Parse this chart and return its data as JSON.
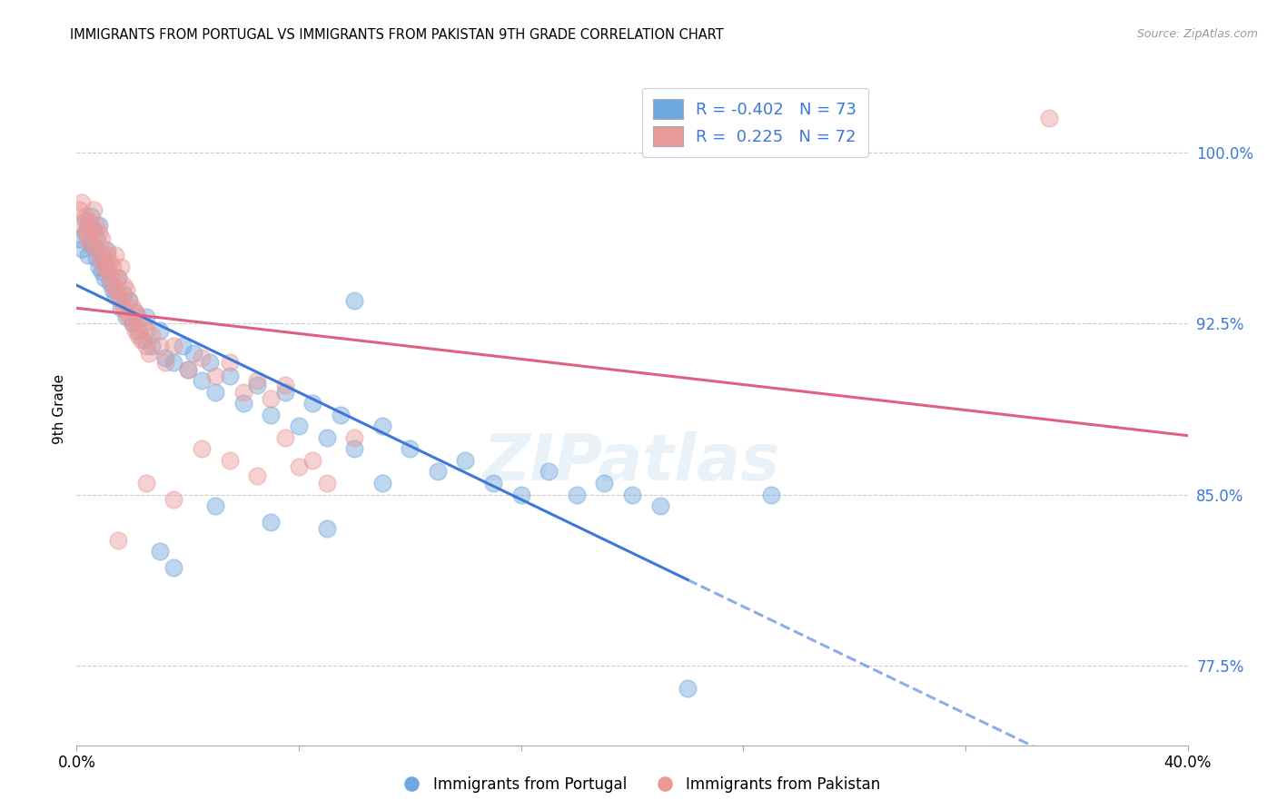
{
  "title": "IMMIGRANTS FROM PORTUGAL VS IMMIGRANTS FROM PAKISTAN 9TH GRADE CORRELATION CHART",
  "source": "Source: ZipAtlas.com",
  "ylabel": "9th Grade",
  "yticks": [
    77.5,
    85.0,
    92.5,
    100.0
  ],
  "ytick_labels": [
    "77.5%",
    "85.0%",
    "92.5%",
    "100.0%"
  ],
  "xlim": [
    0.0,
    40.0
  ],
  "ylim": [
    74.0,
    103.5
  ],
  "xticks": [
    0,
    8,
    16,
    24,
    32,
    40
  ],
  "xtick_labels": [
    "0.0%",
    "",
    "",
    "",
    "",
    "40.0%"
  ],
  "watermark": "ZIPatlas",
  "legend_blue_label": "Immigrants from Portugal",
  "legend_pink_label": "Immigrants from Pakistan",
  "R_blue": -0.402,
  "N_blue": 73,
  "R_pink": 0.225,
  "N_pink": 72,
  "blue_color": "#6fa8dc",
  "pink_color": "#ea9999",
  "blue_line_color": "#3c78d8",
  "pink_line_color": "#e06080",
  "blue_scatter": [
    [
      0.1,
      96.2
    ],
    [
      0.2,
      95.8
    ],
    [
      0.3,
      97.0
    ],
    [
      0.3,
      96.5
    ],
    [
      0.4,
      96.8
    ],
    [
      0.4,
      95.5
    ],
    [
      0.5,
      97.2
    ],
    [
      0.5,
      96.0
    ],
    [
      0.6,
      95.9
    ],
    [
      0.6,
      96.6
    ],
    [
      0.7,
      95.4
    ],
    [
      0.7,
      96.2
    ],
    [
      0.8,
      95.0
    ],
    [
      0.8,
      96.8
    ],
    [
      0.9,
      94.8
    ],
    [
      0.9,
      95.5
    ],
    [
      1.0,
      95.2
    ],
    [
      1.0,
      94.5
    ],
    [
      1.1,
      94.9
    ],
    [
      1.1,
      95.7
    ],
    [
      1.2,
      94.3
    ],
    [
      1.3,
      94.0
    ],
    [
      1.4,
      93.7
    ],
    [
      1.5,
      94.5
    ],
    [
      1.6,
      93.2
    ],
    [
      1.7,
      93.8
    ],
    [
      1.8,
      92.8
    ],
    [
      1.9,
      93.5
    ],
    [
      2.0,
      92.5
    ],
    [
      2.1,
      93.0
    ],
    [
      2.2,
      92.2
    ],
    [
      2.4,
      91.8
    ],
    [
      2.5,
      92.8
    ],
    [
      2.7,
      91.5
    ],
    [
      3.0,
      92.2
    ],
    [
      3.2,
      91.0
    ],
    [
      3.5,
      90.8
    ],
    [
      3.8,
      91.5
    ],
    [
      4.0,
      90.5
    ],
    [
      4.2,
      91.2
    ],
    [
      4.5,
      90.0
    ],
    [
      4.8,
      90.8
    ],
    [
      5.0,
      89.5
    ],
    [
      5.5,
      90.2
    ],
    [
      6.0,
      89.0
    ],
    [
      6.5,
      89.8
    ],
    [
      7.0,
      88.5
    ],
    [
      7.5,
      89.5
    ],
    [
      8.0,
      88.0
    ],
    [
      8.5,
      89.0
    ],
    [
      9.0,
      87.5
    ],
    [
      9.5,
      88.5
    ],
    [
      10.0,
      93.5
    ],
    [
      10.0,
      87.0
    ],
    [
      11.0,
      88.0
    ],
    [
      12.0,
      87.0
    ],
    [
      13.0,
      86.0
    ],
    [
      14.0,
      86.5
    ],
    [
      15.0,
      85.5
    ],
    [
      16.0,
      85.0
    ],
    [
      17.0,
      86.0
    ],
    [
      18.0,
      85.0
    ],
    [
      19.0,
      85.5
    ],
    [
      20.0,
      85.0
    ],
    [
      21.0,
      84.5
    ],
    [
      3.0,
      82.5
    ],
    [
      3.5,
      81.8
    ],
    [
      5.0,
      84.5
    ],
    [
      7.0,
      83.8
    ],
    [
      9.0,
      83.5
    ],
    [
      11.0,
      85.5
    ],
    [
      22.0,
      76.5
    ],
    [
      25.0,
      85.0
    ]
  ],
  "pink_scatter": [
    [
      0.1,
      97.5
    ],
    [
      0.2,
      96.8
    ],
    [
      0.2,
      97.8
    ],
    [
      0.3,
      96.5
    ],
    [
      0.3,
      97.2
    ],
    [
      0.4,
      97.0
    ],
    [
      0.4,
      96.2
    ],
    [
      0.5,
      96.8
    ],
    [
      0.5,
      96.0
    ],
    [
      0.6,
      96.5
    ],
    [
      0.6,
      97.5
    ],
    [
      0.7,
      95.8
    ],
    [
      0.7,
      96.8
    ],
    [
      0.8,
      95.5
    ],
    [
      0.8,
      96.5
    ],
    [
      0.9,
      95.2
    ],
    [
      0.9,
      96.2
    ],
    [
      1.0,
      95.0
    ],
    [
      1.0,
      95.8
    ],
    [
      1.1,
      94.8
    ],
    [
      1.1,
      95.5
    ],
    [
      1.2,
      94.5
    ],
    [
      1.2,
      95.2
    ],
    [
      1.3,
      94.2
    ],
    [
      1.3,
      95.0
    ],
    [
      1.4,
      94.0
    ],
    [
      1.4,
      95.5
    ],
    [
      1.5,
      93.8
    ],
    [
      1.5,
      94.5
    ],
    [
      1.6,
      93.5
    ],
    [
      1.6,
      95.0
    ],
    [
      1.7,
      93.2
    ],
    [
      1.7,
      94.2
    ],
    [
      1.8,
      93.0
    ],
    [
      1.8,
      94.0
    ],
    [
      1.9,
      92.8
    ],
    [
      1.9,
      93.5
    ],
    [
      2.0,
      92.5
    ],
    [
      2.0,
      93.2
    ],
    [
      2.1,
      92.2
    ],
    [
      2.1,
      93.0
    ],
    [
      2.2,
      92.0
    ],
    [
      2.2,
      92.8
    ],
    [
      2.3,
      91.8
    ],
    [
      2.4,
      92.5
    ],
    [
      2.5,
      91.5
    ],
    [
      2.5,
      92.2
    ],
    [
      2.6,
      91.2
    ],
    [
      2.7,
      92.0
    ],
    [
      3.0,
      91.5
    ],
    [
      3.2,
      90.8
    ],
    [
      3.5,
      91.5
    ],
    [
      4.0,
      90.5
    ],
    [
      4.5,
      91.0
    ],
    [
      5.0,
      90.2
    ],
    [
      5.5,
      90.8
    ],
    [
      6.0,
      89.5
    ],
    [
      6.5,
      90.0
    ],
    [
      7.0,
      89.2
    ],
    [
      7.5,
      89.8
    ],
    [
      1.5,
      83.0
    ],
    [
      2.5,
      85.5
    ],
    [
      3.5,
      84.8
    ],
    [
      4.5,
      87.0
    ],
    [
      5.5,
      86.5
    ],
    [
      6.5,
      85.8
    ],
    [
      7.5,
      87.5
    ],
    [
      8.0,
      86.2
    ],
    [
      8.5,
      86.5
    ],
    [
      9.0,
      85.5
    ],
    [
      35.0,
      101.5
    ],
    [
      10.0,
      87.5
    ]
  ],
  "blue_solid_end_x": 22.0,
  "pink_line_alpha": 1.0
}
